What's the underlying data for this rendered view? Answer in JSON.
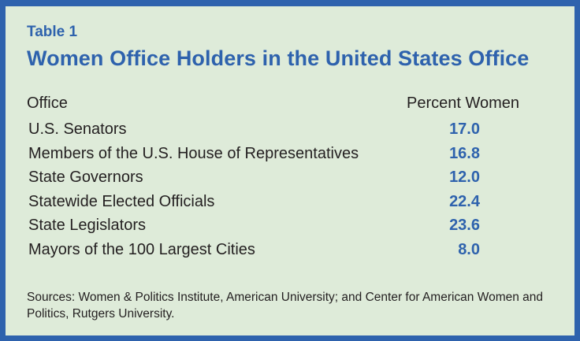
{
  "table": {
    "label": "Table 1",
    "title": "Women Office Holders in the United States Office",
    "headers": {
      "office": "Office",
      "percent": "Percent Women"
    },
    "rows": [
      {
        "office": "U.S. Senators",
        "percent": "17.0"
      },
      {
        "office": "Members of the U.S. House of Representatives",
        "percent": "16.8"
      },
      {
        "office": "State Governors",
        "percent": "12.0"
      },
      {
        "office": "Statewide Elected Officials",
        "percent": "22.4"
      },
      {
        "office": "State Legislators",
        "percent": "23.6"
      },
      {
        "office": "Mayors of the 100 Largest Cities",
        "percent": "8.0"
      }
    ],
    "sources": "Sources: Women & Politics Institute, American University; and Center for American Women and Politics, Rutgers University."
  },
  "colors": {
    "border": "#2e62ad",
    "background": "#deebd9",
    "accent": "#2e62ad",
    "text": "#231f20"
  }
}
